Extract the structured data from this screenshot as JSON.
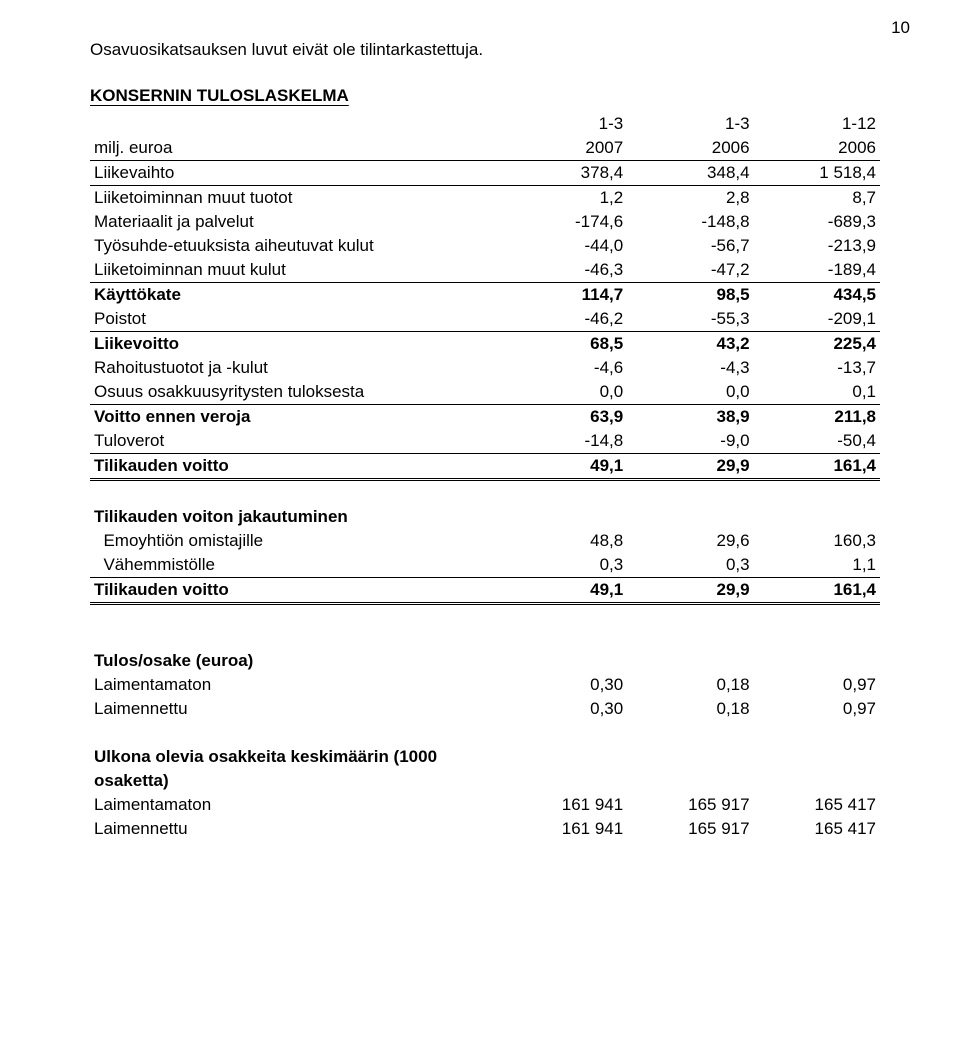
{
  "page_number": "10",
  "intro": "Osavuosikatsauksen luvut eivät ole tilintarkastettuja.",
  "table1": {
    "title": "KONSERNIN TULOSLASKELMA",
    "header_row1": [
      "",
      "1-3",
      "1-3",
      "1-12"
    ],
    "header_row2": [
      "milj. euroa",
      "2007",
      "2006",
      "2006"
    ],
    "rows": [
      {
        "label": "Liikevaihto",
        "c1": "378,4",
        "c2": "348,4",
        "c3": "1 518,4",
        "style": "thin"
      },
      {
        "label": "Liiketoiminnan muut tuotot",
        "c1": "1,2",
        "c2": "2,8",
        "c3": "8,7"
      },
      {
        "label": "Materiaalit ja palvelut",
        "c1": "-174,6",
        "c2": "-148,8",
        "c3": "-689,3"
      },
      {
        "label": "Työsuhde-etuuksista aiheutuvat kulut",
        "c1": "-44,0",
        "c2": "-56,7",
        "c3": "-213,9"
      },
      {
        "label": "Liiketoiminnan muut kulut",
        "c1": "-46,3",
        "c2": "-47,2",
        "c3": "-189,4",
        "style": "thin"
      },
      {
        "label": "Käyttökate",
        "c1": "114,7",
        "c2": "98,5",
        "c3": "434,5",
        "bold": true
      },
      {
        "label": "Poistot",
        "c1": "-46,2",
        "c2": "-55,3",
        "c3": "-209,1",
        "style": "thin"
      },
      {
        "label": "Liikevoitto",
        "c1": "68,5",
        "c2": "43,2",
        "c3": "225,4",
        "bold": true
      },
      {
        "label": "Rahoitustuotot ja -kulut",
        "c1": "-4,6",
        "c2": "-4,3",
        "c3": "-13,7"
      },
      {
        "label": "Osuus osakkuusyritysten tuloksesta",
        "c1": "0,0",
        "c2": "0,0",
        "c3": "0,1",
        "style": "thin"
      },
      {
        "label": "Voitto ennen veroja",
        "c1": "63,9",
        "c2": "38,9",
        "c3": "211,8",
        "bold": true
      },
      {
        "label": "Tuloverot",
        "c1": "-14,8",
        "c2": "-9,0",
        "c3": "-50,4",
        "style": "thin"
      },
      {
        "label": "Tilikauden voitto",
        "c1": "49,1",
        "c2": "29,9",
        "c3": "161,4",
        "bold": true,
        "style": "double"
      }
    ]
  },
  "table2": {
    "title": "Tilikauden voiton jakautuminen",
    "rows": [
      {
        "label": "  Emoyhtiön omistajille",
        "c1": "48,8",
        "c2": "29,6",
        "c3": "160,3"
      },
      {
        "label": "  Vähemmistölle",
        "c1": "0,3",
        "c2": "0,3",
        "c3": "1,1",
        "style": "thin"
      },
      {
        "label": "Tilikauden voitto",
        "c1": "49,1",
        "c2": "29,9",
        "c3": "161,4",
        "bold": true,
        "style": "double"
      }
    ]
  },
  "table3": {
    "title": "Tulos/osake (euroa)",
    "rows": [
      {
        "label": "Laimentamaton",
        "c1": "0,30",
        "c2": "0,18",
        "c3": "0,97"
      },
      {
        "label": "Laimennettu",
        "c1": "0,30",
        "c2": "0,18",
        "c3": "0,97"
      }
    ]
  },
  "table4": {
    "title_line1": "Ulkona olevia osakkeita keskimäärin (1000",
    "title_line2": "osaketta)",
    "rows": [
      {
        "label": "Laimentamaton",
        "c1": "161 941",
        "c2": "165 917",
        "c3": "165 417"
      },
      {
        "label": "Laimennettu",
        "c1": "161 941",
        "c2": "165 917",
        "c3": "165 417"
      }
    ]
  },
  "style": {
    "font_family": "Arial",
    "font_size_pt": 13,
    "text_color": "#000000",
    "background_color": "#ffffff",
    "line_color": "#000000"
  }
}
